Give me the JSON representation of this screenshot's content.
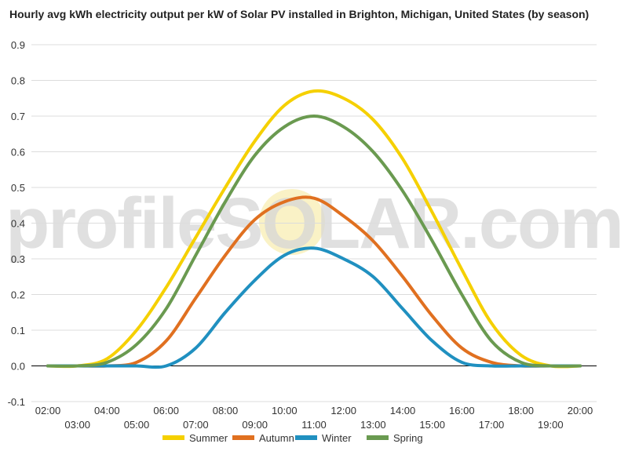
{
  "chart_data": {
    "type": "line",
    "title": "Hourly avg kWh electricity output per kW of Solar PV installed in Brighton, Michigan, United States (by season)",
    "watermark": "profileSOLAR.com",
    "xlabel": "",
    "ylabel": "",
    "ylim": [
      -0.1,
      0.9
    ],
    "yticks": [
      "-0.1",
      "0.0",
      "0.1",
      "0.2",
      "0.3",
      "0.4",
      "0.5",
      "0.6",
      "0.7",
      "0.8",
      "0.9"
    ],
    "grid": true,
    "legend_position": "bottom",
    "x": [
      "02:00",
      "03:00",
      "04:00",
      "05:00",
      "06:00",
      "07:00",
      "08:00",
      "09:00",
      "10:00",
      "11:00",
      "12:00",
      "13:00",
      "14:00",
      "15:00",
      "16:00",
      "17:00",
      "18:00",
      "19:00",
      "20:00"
    ],
    "series": [
      {
        "name": "Summer",
        "color": "#f5d000",
        "values": [
          0.0,
          0.0,
          0.02,
          0.1,
          0.22,
          0.36,
          0.5,
          0.63,
          0.73,
          0.77,
          0.75,
          0.69,
          0.58,
          0.43,
          0.27,
          0.12,
          0.03,
          0.0,
          0.0
        ]
      },
      {
        "name": "Autumn",
        "color": "#e07020",
        "values": [
          0.0,
          0.0,
          0.0,
          0.01,
          0.07,
          0.19,
          0.31,
          0.41,
          0.46,
          0.47,
          0.42,
          0.35,
          0.25,
          0.14,
          0.05,
          0.01,
          0.0,
          0.0,
          0.0
        ]
      },
      {
        "name": "Winter",
        "color": "#2090c0",
        "values": [
          0.0,
          0.0,
          0.0,
          0.0,
          0.0,
          0.05,
          0.15,
          0.24,
          0.31,
          0.33,
          0.3,
          0.25,
          0.16,
          0.07,
          0.01,
          0.0,
          0.0,
          0.0,
          0.0
        ]
      },
      {
        "name": "Spring",
        "color": "#6a9a50",
        "values": [
          0.0,
          0.0,
          0.01,
          0.06,
          0.16,
          0.31,
          0.46,
          0.59,
          0.67,
          0.7,
          0.67,
          0.6,
          0.49,
          0.35,
          0.2,
          0.07,
          0.01,
          0.0,
          0.0
        ]
      }
    ]
  }
}
